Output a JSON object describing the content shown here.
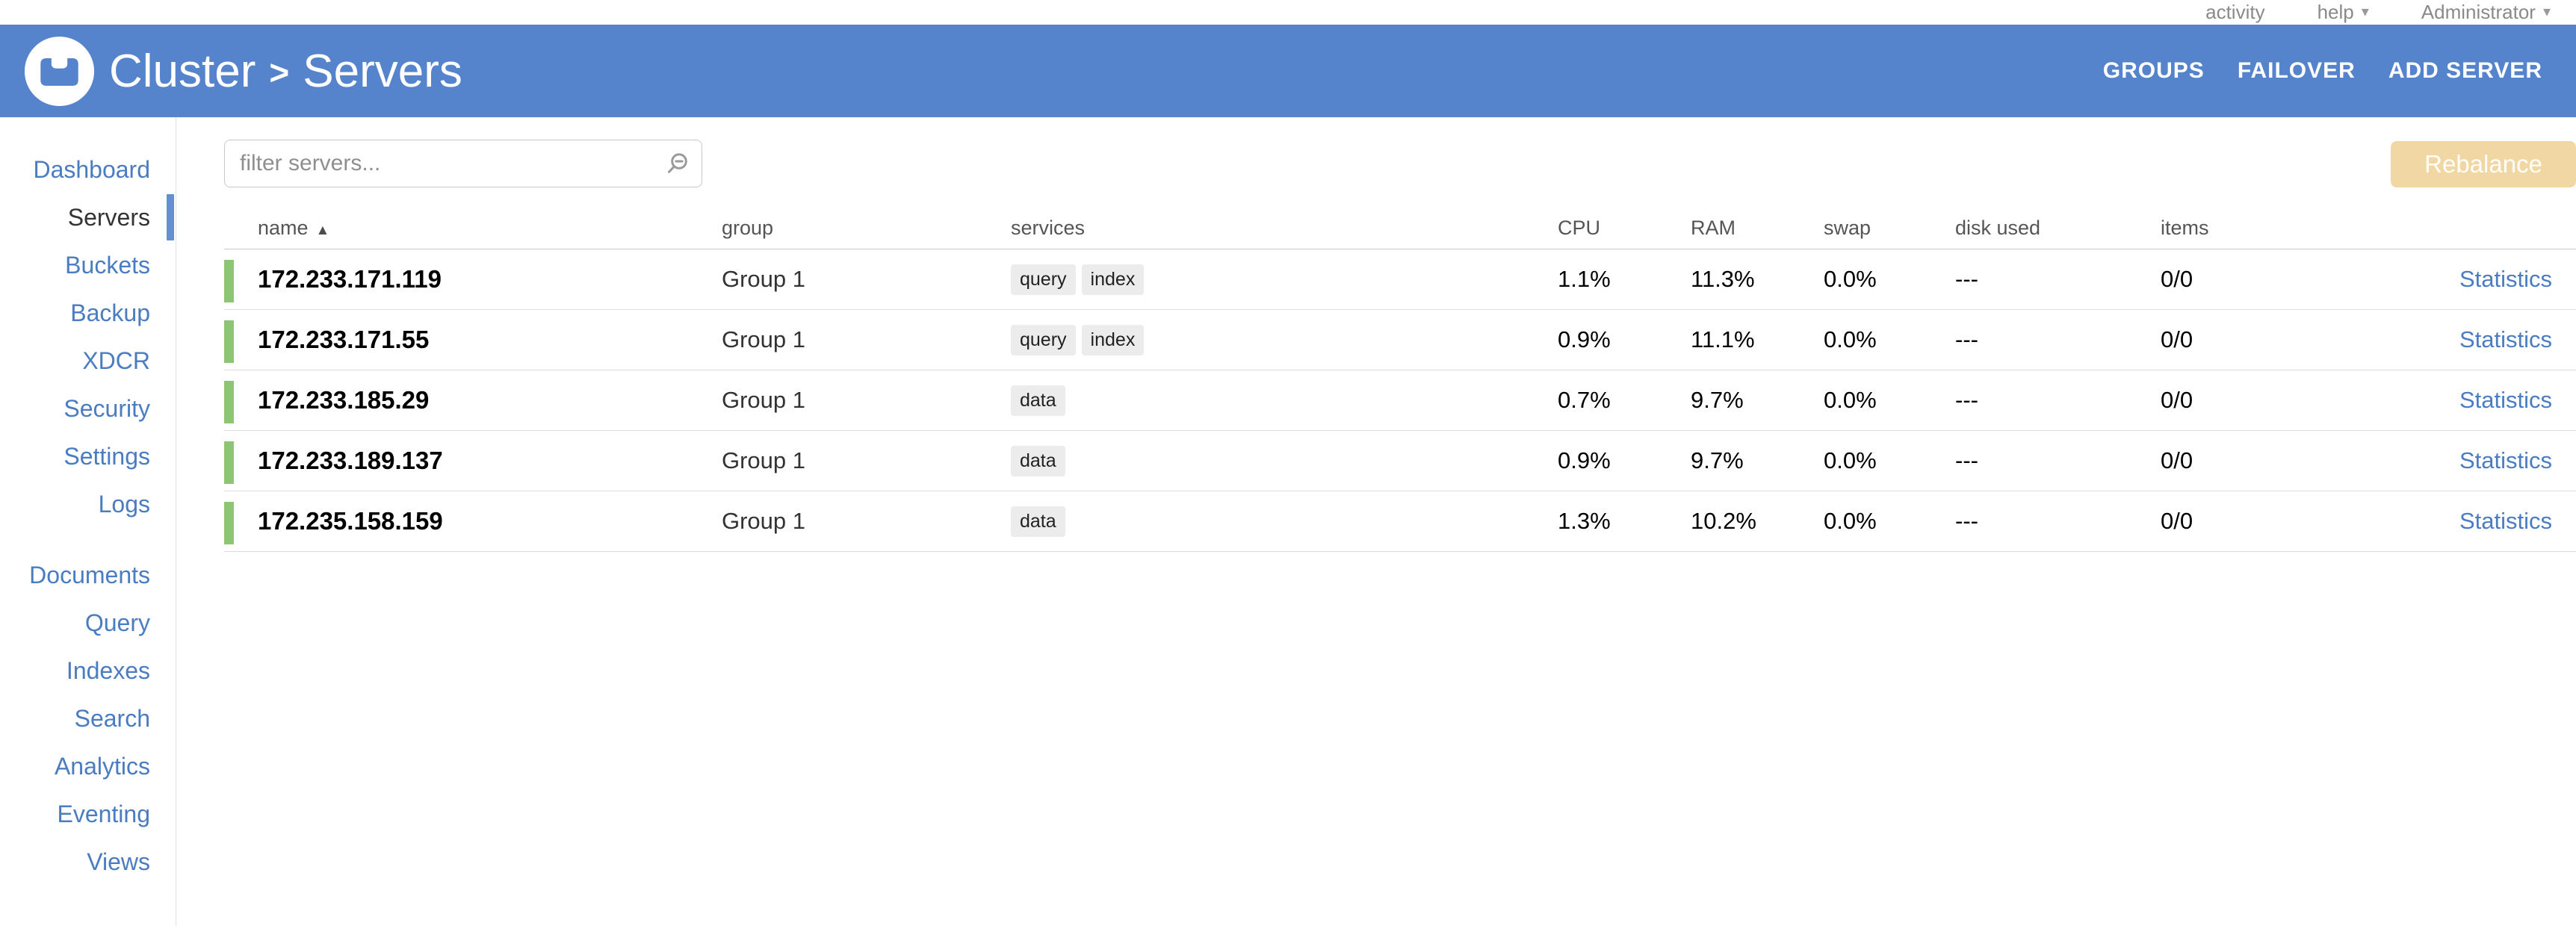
{
  "icons": {
    "caret_down": "▾",
    "sort_asc": "▲"
  },
  "utility_bar": {
    "links": [
      {
        "label": "activity",
        "caret": false
      },
      {
        "label": "help",
        "caret": true
      },
      {
        "label": "Administrator",
        "caret": true
      }
    ]
  },
  "header": {
    "breadcrumb": {
      "cluster": "Cluster",
      "separator": ">",
      "section": "Servers"
    },
    "actions": [
      {
        "label": "GROUPS"
      },
      {
        "label": "FAILOVER"
      },
      {
        "label": "ADD SERVER"
      }
    ]
  },
  "sidebar": {
    "top_items": [
      {
        "label": "Dashboard",
        "active": false
      },
      {
        "label": "Servers",
        "active": true
      },
      {
        "label": "Buckets",
        "active": false
      },
      {
        "label": "Backup",
        "active": false
      },
      {
        "label": "XDCR",
        "active": false
      },
      {
        "label": "Security",
        "active": false
      },
      {
        "label": "Settings",
        "active": false
      },
      {
        "label": "Logs",
        "active": false
      }
    ],
    "bottom_items": [
      {
        "label": "Documents",
        "active": false
      },
      {
        "label": "Query",
        "active": false
      },
      {
        "label": "Indexes",
        "active": false
      },
      {
        "label": "Search",
        "active": false
      },
      {
        "label": "Analytics",
        "active": false
      },
      {
        "label": "Eventing",
        "active": false
      },
      {
        "label": "Views",
        "active": false
      }
    ]
  },
  "toolbar": {
    "filter_placeholder": "filter servers...",
    "rebalance_label": "Rebalance"
  },
  "table": {
    "columns": [
      "name",
      "group",
      "services",
      "CPU",
      "RAM",
      "swap",
      "disk used",
      "items"
    ],
    "sort_column": "name",
    "statistics_label": "Statistics",
    "rows": [
      {
        "name": "172.233.171.119",
        "group": "Group 1",
        "services": [
          "query",
          "index"
        ],
        "cpu": "1.1%",
        "ram": "11.3%",
        "swap": "0.0%",
        "disk_used": "---",
        "items": "0/0"
      },
      {
        "name": "172.233.171.55",
        "group": "Group 1",
        "services": [
          "query",
          "index"
        ],
        "cpu": "0.9%",
        "ram": "11.1%",
        "swap": "0.0%",
        "disk_used": "---",
        "items": "0/0"
      },
      {
        "name": "172.233.185.29",
        "group": "Group 1",
        "services": [
          "data"
        ],
        "cpu": "0.7%",
        "ram": "9.7%",
        "swap": "0.0%",
        "disk_used": "---",
        "items": "0/0"
      },
      {
        "name": "172.233.189.137",
        "group": "Group 1",
        "services": [
          "data"
        ],
        "cpu": "0.9%",
        "ram": "9.7%",
        "swap": "0.0%",
        "disk_used": "---",
        "items": "0/0"
      },
      {
        "name": "172.235.158.159",
        "group": "Group 1",
        "services": [
          "data"
        ],
        "cpu": "1.3%",
        "ram": "10.2%",
        "swap": "0.0%",
        "disk_used": "---",
        "items": "0/0"
      }
    ]
  },
  "colors": {
    "header_blue": "#5584cd",
    "link_blue": "#4a7cc2",
    "active_indicator_blue": "#6290d2",
    "row_indicator_green": "#8cc573",
    "rebalance_bg": "#f1d7a3",
    "badge_bg": "#ececec",
    "utility_gray": "#8a8a8a"
  }
}
